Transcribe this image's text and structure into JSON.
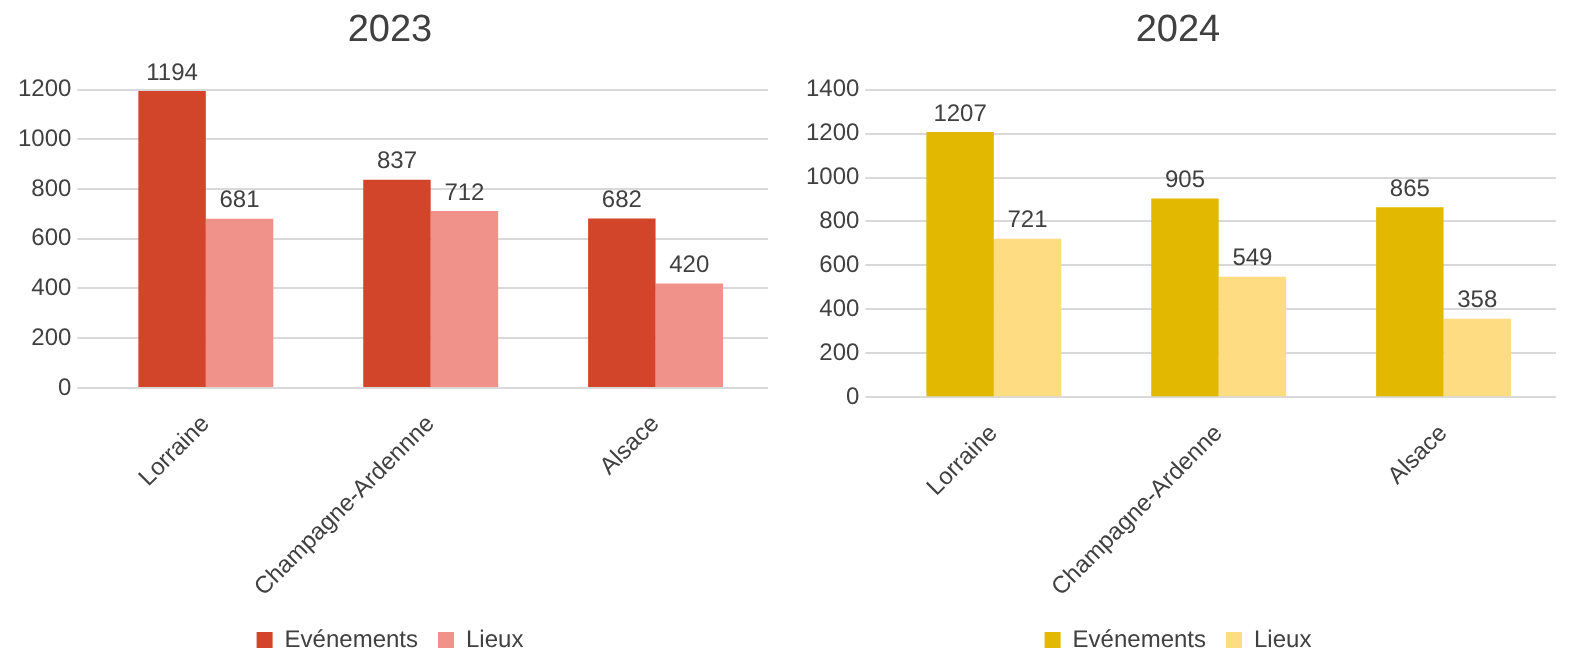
{
  "chart_data": [
    {
      "type": "bar",
      "title": "2023",
      "categories": [
        "Lorraine",
        "Champagne-Ardennne",
        "Alsace"
      ],
      "series": [
        {
          "name": "Evénements",
          "color": "#d2452a",
          "values": [
            1194,
            837,
            682
          ]
        },
        {
          "name": "Lieux",
          "color": "#f0918a",
          "values": [
            681,
            712,
            420
          ]
        }
      ],
      "ylim": [
        0,
        1200
      ],
      "yticks": [
        0,
        200,
        400,
        600,
        800,
        1000,
        1200
      ],
      "grid": "y",
      "legend": "bottom",
      "data_labels": true
    },
    {
      "type": "bar",
      "title": "2024",
      "categories": [
        "Lorraine",
        "Champagne-Ardenne",
        "Alsace"
      ],
      "series": [
        {
          "name": "Evénements",
          "color": "#e2b800",
          "values": [
            1207,
            905,
            865
          ]
        },
        {
          "name": "Lieux",
          "color": "#fddc82",
          "values": [
            721,
            549,
            358
          ]
        }
      ],
      "ylim": [
        0,
        1400
      ],
      "yticks": [
        0,
        200,
        400,
        600,
        800,
        1000,
        1200,
        1400
      ],
      "grid": "y",
      "legend": "bottom",
      "data_labels": true
    }
  ]
}
